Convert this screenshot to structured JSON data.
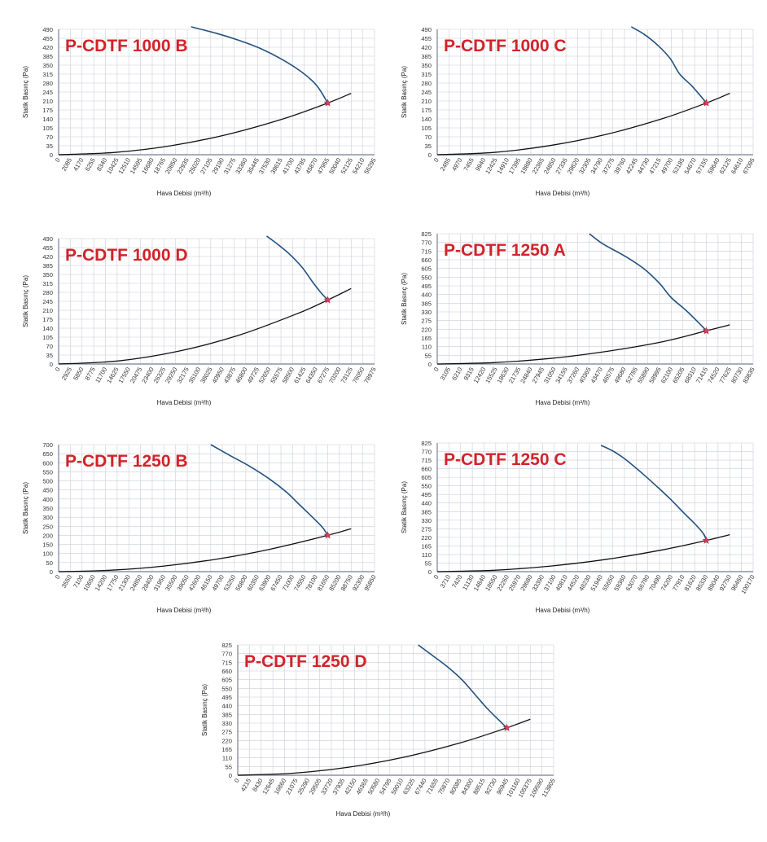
{
  "chart_data": [
    {
      "type": "line",
      "title": "P-CDTF 1000 B",
      "xlabel": "Hava Debisi (m³/h)",
      "ylabel": "Statik Basınç (Pa)",
      "x_ticks": [
        "0",
        "2085",
        "4170",
        "6255",
        "8340",
        "10425",
        "12510",
        "14595",
        "16680",
        "18765",
        "20850",
        "22935",
        "25020",
        "27105",
        "29190",
        "31275",
        "33360",
        "35445",
        "37530",
        "39615",
        "41700",
        "43785",
        "45870",
        "47955",
        "50040",
        "52125",
        "54210",
        "56295"
      ],
      "y_ticks": [
        "0",
        "35",
        "70",
        "105",
        "140",
        "175",
        "210",
        "245",
        "280",
        "315",
        "350",
        "385",
        "420",
        "455",
        "490"
      ],
      "xlim": [
        0,
        56295
      ],
      "ylim": [
        0,
        490
      ],
      "grid": true,
      "series": [
        {
          "role": "fan",
          "x": [
            23600,
            28000,
            32000,
            36000,
            40000,
            43500,
            46000,
            47955
          ],
          "y": [
            500,
            475,
            448,
            415,
            370,
            320,
            270,
            202
          ]
        },
        {
          "role": "system",
          "x": [
            0,
            10000,
            20000,
            30000,
            40000,
            47955,
            52125
          ],
          "y": [
            0,
            9,
            35,
            79,
            140,
            202,
            240
          ]
        }
      ],
      "operating_point": {
        "x": 47955,
        "y": 202
      }
    },
    {
      "type": "line",
      "title": "P-CDTF 1000 C",
      "xlabel": "Hava Debisi (m³/h)",
      "ylabel": "Statik Basınç (Pa)",
      "x_ticks": [
        "0",
        "2485",
        "4970",
        "7455",
        "9940",
        "12425",
        "14910",
        "17395",
        "19880",
        "22365",
        "24850",
        "27335",
        "29820",
        "32305",
        "34790",
        "37275",
        "39760",
        "42245",
        "44730",
        "47215",
        "49700",
        "52185",
        "54670",
        "57155",
        "59640",
        "62125",
        "64610",
        "67095"
      ],
      "y_ticks": [
        "0",
        "35",
        "70",
        "105",
        "140",
        "175",
        "210",
        "245",
        "280",
        "315",
        "350",
        "385",
        "420",
        "455",
        "490"
      ],
      "xlim": [
        0,
        67095
      ],
      "ylim": [
        0,
        490
      ],
      "grid": true,
      "series": [
        {
          "role": "fan",
          "x": [
            41200,
            44000,
            47000,
            49500,
            51500,
            54000,
            56000,
            57155
          ],
          "y": [
            500,
            470,
            425,
            375,
            315,
            270,
            228,
            202
          ]
        },
        {
          "role": "system",
          "x": [
            0,
            12000,
            24000,
            36000,
            48000,
            57155,
            62125
          ],
          "y": [
            0,
            9,
            36,
            80,
            142,
            202,
            240
          ]
        }
      ],
      "operating_point": {
        "x": 57155,
        "y": 202
      }
    },
    {
      "type": "line",
      "title": "P-CDTF 1000 D",
      "xlabel": "Hava Debisi (m³/h)",
      "ylabel": "Statik Basınç (Pa)",
      "x_ticks": [
        "0",
        "2925",
        "5850",
        "8775",
        "11700",
        "14625",
        "17550",
        "20475",
        "23400",
        "26325",
        "29250",
        "32175",
        "35100",
        "38025",
        "40950",
        "43875",
        "46800",
        "49725",
        "52650",
        "55575",
        "58500",
        "61425",
        "64350",
        "67275",
        "70200",
        "73125",
        "76050",
        "78975"
      ],
      "y_ticks": [
        "0",
        "35",
        "70",
        "105",
        "140",
        "175",
        "210",
        "245",
        "280",
        "315",
        "350",
        "385",
        "420",
        "455",
        "490"
      ],
      "xlim": [
        0,
        78975
      ],
      "ylim": [
        0,
        490
      ],
      "grid": true,
      "series": [
        {
          "role": "fan",
          "x": [
            52000,
            55000,
            58000,
            61000,
            63500,
            65500,
            67275
          ],
          "y": [
            500,
            465,
            425,
            375,
            320,
            280,
            250
          ]
        },
        {
          "role": "system",
          "x": [
            0,
            15000,
            30000,
            45000,
            60000,
            67275,
            73125
          ],
          "y": [
            0,
            12,
            50,
            112,
            199,
            250,
            295
          ]
        }
      ],
      "operating_point": {
        "x": 67275,
        "y": 250
      }
    },
    {
      "type": "line",
      "title": "P-CDTF 1250 A",
      "xlabel": "Hava Debisi (m³/h)",
      "ylabel": "Statik Basınç (Pa)",
      "x_ticks": [
        "0",
        "3105",
        "6210",
        "9315",
        "12420",
        "15525",
        "18630",
        "21735",
        "24840",
        "27945",
        "31050",
        "34155",
        "37260",
        "40365",
        "43470",
        "46575",
        "49680",
        "52785",
        "55890",
        "58995",
        "62100",
        "65205",
        "68310",
        "71415",
        "74520",
        "77625",
        "80730",
        "83835"
      ],
      "y_ticks": [
        "0",
        "55",
        "110",
        "165",
        "220",
        "275",
        "330",
        "385",
        "440",
        "495",
        "550",
        "605",
        "660",
        "715",
        "770",
        "825"
      ],
      "xlim": [
        0,
        83835
      ],
      "ylim": [
        0,
        825
      ],
      "grid": true,
      "series": [
        {
          "role": "fan",
          "x": [
            40365,
            44000,
            50000,
            55000,
            59000,
            62100,
            66000,
            69000,
            71415
          ],
          "y": [
            825,
            760,
            680,
            600,
            510,
            420,
            340,
            270,
            210
          ]
        },
        {
          "role": "system",
          "x": [
            0,
            15000,
            30000,
            45000,
            60000,
            71415,
            77625
          ],
          "y": [
            0,
            9,
            35,
            80,
            142,
            210,
            248
          ]
        }
      ],
      "operating_point": {
        "x": 71415,
        "y": 210
      }
    },
    {
      "type": "line",
      "title": "P-CDTF 1250 B",
      "xlabel": "Hava Debisi (m³/h)",
      "ylabel": "Statik Basınç (Pa)",
      "x_ticks": [
        "0",
        "3550",
        "7100",
        "10650",
        "14200",
        "17750",
        "21300",
        "24850",
        "28400",
        "31950",
        "35500",
        "39050",
        "42600",
        "46150",
        "49700",
        "53250",
        "56800",
        "60350",
        "63900",
        "67450",
        "71000",
        "74550",
        "78100",
        "81650",
        "85200",
        "88750",
        "92300",
        "95850"
      ],
      "y_ticks": [
        "0",
        "50",
        "100",
        "150",
        "200",
        "250",
        "300",
        "350",
        "400",
        "450",
        "500",
        "550",
        "600",
        "650",
        "700"
      ],
      "xlim": [
        0,
        95850
      ],
      "ylim": [
        0,
        700
      ],
      "grid": true,
      "series": [
        {
          "role": "fan",
          "x": [
            46150,
            52000,
            58000,
            64000,
            69000,
            73000,
            77000,
            80000,
            81650
          ],
          "y": [
            700,
            640,
            580,
            510,
            440,
            370,
            300,
            245,
            200
          ]
        },
        {
          "role": "system",
          "x": [
            0,
            16000,
            32000,
            48000,
            64000,
            81650,
            88750
          ],
          "y": [
            0,
            8,
            31,
            69,
            123,
            200,
            237
          ]
        }
      ],
      "operating_point": {
        "x": 81650,
        "y": 200
      }
    },
    {
      "type": "line",
      "title": "P-CDTF 1250 C",
      "xlabel": "Hava Debisi (m³/h)",
      "ylabel": "Statik Basınç (Pa)",
      "x_ticks": [
        "0",
        "3710",
        "7420",
        "11130",
        "14840",
        "18550",
        "22260",
        "25970",
        "29680",
        "33390",
        "37100",
        "40810",
        "44520",
        "48230",
        "51940",
        "55650",
        "59360",
        "63070",
        "66780",
        "70490",
        "74200",
        "77910",
        "81620",
        "85330",
        "89040",
        "92750",
        "96460",
        "100170"
      ],
      "y_ticks": [
        "0",
        "55",
        "110",
        "165",
        "220",
        "275",
        "330",
        "385",
        "440",
        "495",
        "550",
        "605",
        "660",
        "715",
        "770",
        "825"
      ],
      "xlim": [
        0,
        100170
      ],
      "ylim": [
        0,
        825
      ],
      "grid": true,
      "series": [
        {
          "role": "fan",
          "x": [
            51940,
            56000,
            60000,
            65000,
            70000,
            74200,
            78000,
            82000,
            84500,
            85330
          ],
          "y": [
            810,
            770,
            715,
            630,
            540,
            460,
            380,
            300,
            240,
            200
          ]
        },
        {
          "role": "system",
          "x": [
            0,
            18000,
            36000,
            54000,
            72000,
            85330,
            92750
          ],
          "y": [
            0,
            9,
            36,
            80,
            142,
            200,
            237
          ]
        }
      ],
      "operating_point": {
        "x": 85330,
        "y": 200
      }
    },
    {
      "type": "line",
      "title": "P-CDTF 1250 D",
      "xlabel": "Hava Debisi (m³/h)",
      "ylabel": "Statik Basınç (Pa)",
      "x_ticks": [
        "0",
        "4215",
        "8430",
        "12645",
        "16860",
        "21075",
        "25290",
        "29505",
        "33720",
        "37935",
        "42150",
        "46365",
        "50580",
        "54795",
        "59010",
        "63225",
        "67440",
        "71655",
        "75870",
        "80085",
        "84300",
        "88515",
        "92730",
        "96945",
        "101160",
        "105375",
        "109590",
        "113805"
      ],
      "y_ticks": [
        "0",
        "55",
        "110",
        "165",
        "220",
        "275",
        "330",
        "385",
        "440",
        "495",
        "550",
        "605",
        "660",
        "715",
        "770",
        "825"
      ],
      "xlim": [
        0,
        113805
      ],
      "ylim": [
        0,
        825
      ],
      "grid": true,
      "series": [
        {
          "role": "fan",
          "x": [
            65000,
            70000,
            76000,
            81000,
            86000,
            90000,
            94000,
            96945
          ],
          "y": [
            825,
            760,
            680,
            600,
            500,
            420,
            350,
            300
          ]
        },
        {
          "role": "system",
          "x": [
            0,
            20000,
            40000,
            60000,
            80000,
            96945,
            105375
          ],
          "y": [
            0,
            13,
            51,
            115,
            204,
            300,
            355
          ]
        }
      ],
      "operating_point": {
        "x": 96945,
        "y": 300
      }
    }
  ]
}
